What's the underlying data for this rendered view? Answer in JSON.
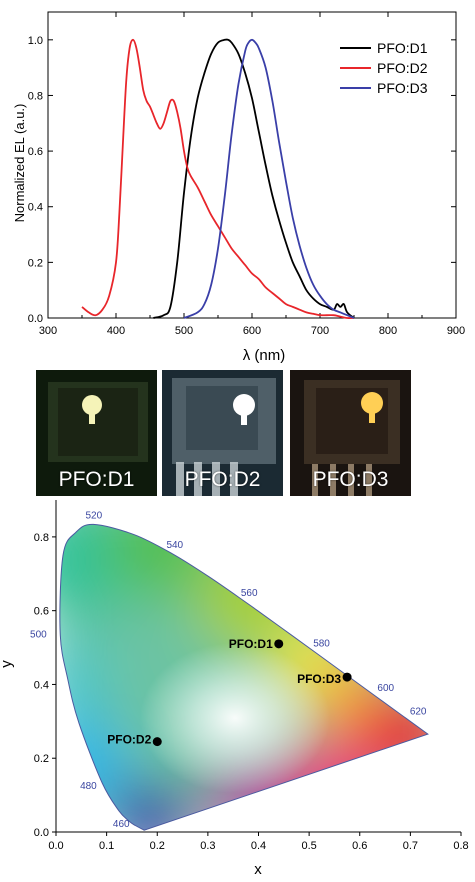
{
  "chart_data": [
    {
      "type": "line",
      "xlabel": "λ (nm)",
      "ylabel": "Normalized EL (a.u.)",
      "xlim": [
        300,
        900
      ],
      "ylim": [
        0,
        1.1
      ],
      "xticks": [
        "300",
        "400",
        "500",
        "600",
        "700",
        "800",
        "900"
      ],
      "yticks": [
        "0.0",
        "0.2",
        "0.4",
        "0.6",
        "0.8",
        "1.0"
      ],
      "legend_position": "top-right",
      "series": [
        {
          "name": "PFO:D1",
          "color": "#000000",
          "x": [
            455,
            470,
            480,
            490,
            500,
            510,
            520,
            530,
            540,
            550,
            560,
            565,
            570,
            580,
            590,
            600,
            610,
            620,
            630,
            640,
            650,
            660,
            670,
            680,
            690,
            700,
            710,
            720,
            725,
            730,
            735,
            740,
            750
          ],
          "y": [
            0,
            0.01,
            0.04,
            0.2,
            0.45,
            0.65,
            0.79,
            0.88,
            0.95,
            0.99,
            1.0,
            1.0,
            0.99,
            0.95,
            0.88,
            0.79,
            0.67,
            0.55,
            0.44,
            0.35,
            0.27,
            0.2,
            0.15,
            0.1,
            0.07,
            0.05,
            0.04,
            0.03,
            0.05,
            0.04,
            0.05,
            0.02,
            0.0
          ]
        },
        {
          "name": "PFO:D2",
          "color": "#e8262b",
          "x": [
            350,
            360,
            370,
            380,
            390,
            400,
            405,
            410,
            415,
            420,
            425,
            430,
            435,
            440,
            445,
            450,
            455,
            460,
            465,
            470,
            475,
            480,
            485,
            490,
            495,
            500,
            505,
            510,
            520,
            530,
            540,
            550,
            560,
            570,
            580,
            590,
            600,
            610,
            620,
            630,
            640,
            650,
            660,
            670,
            680,
            690,
            700,
            710,
            720,
            730,
            740,
            750
          ],
          "y": [
            0.04,
            0.02,
            0.01,
            0.03,
            0.08,
            0.2,
            0.38,
            0.62,
            0.85,
            0.97,
            1.0,
            0.97,
            0.9,
            0.82,
            0.78,
            0.76,
            0.73,
            0.7,
            0.68,
            0.7,
            0.74,
            0.78,
            0.78,
            0.74,
            0.68,
            0.6,
            0.54,
            0.51,
            0.47,
            0.42,
            0.37,
            0.33,
            0.29,
            0.25,
            0.22,
            0.19,
            0.16,
            0.14,
            0.11,
            0.09,
            0.07,
            0.05,
            0.04,
            0.03,
            0.02,
            0.015,
            0.01,
            0.01,
            0.01,
            0.005,
            0.0,
            0.0
          ]
        },
        {
          "name": "PFO:D3",
          "color": "#3a3fa8",
          "x": [
            500,
            520,
            530,
            540,
            550,
            560,
            570,
            580,
            590,
            595,
            600,
            605,
            610,
            620,
            630,
            640,
            650,
            660,
            670,
            680,
            690,
            700,
            710,
            720,
            730,
            740,
            750
          ],
          "y": [
            0,
            0.02,
            0.05,
            0.12,
            0.25,
            0.44,
            0.66,
            0.84,
            0.96,
            0.99,
            1.0,
            0.99,
            0.97,
            0.9,
            0.78,
            0.63,
            0.49,
            0.36,
            0.26,
            0.18,
            0.12,
            0.08,
            0.05,
            0.03,
            0.02,
            0.01,
            0.0
          ]
        }
      ]
    },
    {
      "type": "scatter",
      "xlabel": "x",
      "ylabel": "y",
      "xlim": [
        0.0,
        0.8
      ],
      "ylim": [
        0.0,
        0.9
      ],
      "xticks": [
        "0.0",
        "0.1",
        "0.2",
        "0.3",
        "0.4",
        "0.5",
        "0.6",
        "0.7",
        "0.8"
      ],
      "yticks": [
        "0.0",
        "0.2",
        "0.4",
        "0.6",
        "0.8"
      ],
      "locus_labels": [
        {
          "text": "460",
          "x": 0.144,
          "y": 0.03
        },
        {
          "text": "480",
          "x": 0.091,
          "y": 0.133
        },
        {
          "text": "500",
          "x": 0.008,
          "y": 0.538
        },
        {
          "text": "520",
          "x": 0.074,
          "y": 0.834
        },
        {
          "text": "540",
          "x": 0.23,
          "y": 0.754
        },
        {
          "text": "560",
          "x": 0.373,
          "y": 0.624
        },
        {
          "text": "580",
          "x": 0.512,
          "y": 0.487
        },
        {
          "text": "600",
          "x": 0.627,
          "y": 0.372
        },
        {
          "text": "620",
          "x": 0.691,
          "y": 0.308
        }
      ],
      "points": [
        {
          "name": "PFO:D1",
          "x": 0.44,
          "y": 0.51
        },
        {
          "name": "PFO:D2",
          "x": 0.2,
          "y": 0.245
        },
        {
          "name": "PFO:D3",
          "x": 0.575,
          "y": 0.42
        }
      ]
    }
  ],
  "photos": [
    {
      "label": "PFO:D1",
      "bg": "#0e1a0c",
      "glow": "#f5f3b8"
    },
    {
      "label": "PFO:D2",
      "bg": "#1b2a33",
      "glow": "#ffffff"
    },
    {
      "label": "PFO:D3",
      "bg": "#1a1410",
      "glow": "#ffcf55"
    }
  ]
}
